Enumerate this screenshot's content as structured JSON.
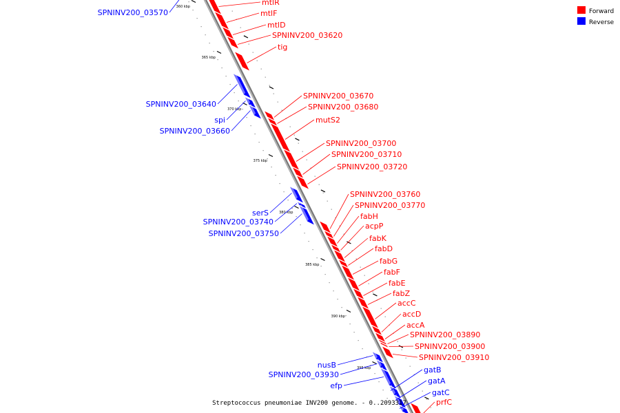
{
  "legend": {
    "forward": {
      "label": "Forward",
      "color": "#ff0000"
    },
    "reverse": {
      "label": "Reverse",
      "color": "#0000ff"
    }
  },
  "caption": "Streptococcus pneumoniae INV200 genome. - 0..2093317",
  "ticks": [
    "360 kbp",
    "365 kbp",
    "370 kbp",
    "375 kbp",
    "380 kbp",
    "385 kbp",
    "390 kbp",
    "395 kbp"
  ],
  "genes": {
    "forward": [
      "mtlR",
      "mtlF",
      "mtlD",
      "SPNINV200_03620",
      "tig",
      "SPNINV200_03670",
      "SPNINV200_03680",
      "mutS2",
      "SPNINV200_03700",
      "SPNINV200_03710",
      "SPNINV200_03720",
      "SPNINV200_03760",
      "SPNINV200_03770",
      "fabH",
      "acpP",
      "fabK",
      "fabD",
      "fabG",
      "fabF",
      "fabE",
      "fabZ",
      "accC",
      "accD",
      "accA",
      "SPNINV200_03890",
      "SPNINV200_03900",
      "SPNINV200_03910",
      "prfC"
    ],
    "reverse": [
      "SPNINV200_03570",
      "SPNINV200_03640",
      "spi",
      "SPNINV200_03660",
      "serS",
      "SPNINV200_03740",
      "SPNINV200_03750",
      "nusB",
      "SPNINV200_03930",
      "efp",
      "gatB",
      "gatA",
      "gatC"
    ]
  }
}
